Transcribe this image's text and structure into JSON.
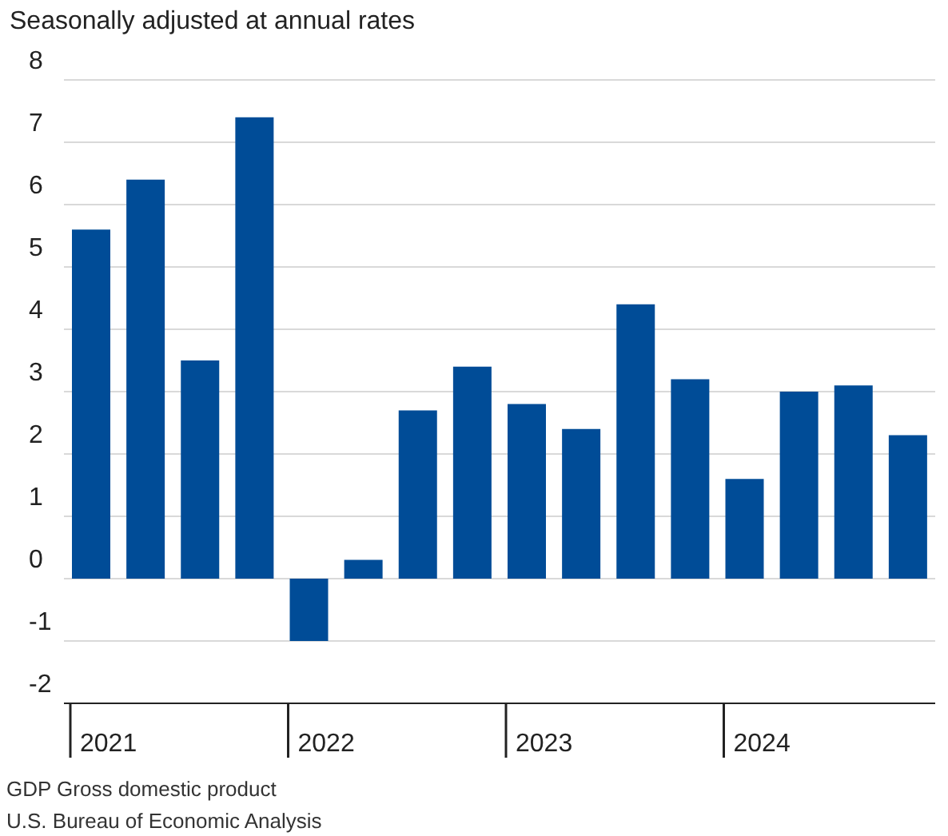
{
  "chart_data": {
    "type": "bar",
    "title": "Seasonally adjusted at annual rates",
    "categories": [
      "2021",
      null,
      null,
      null,
      "2022",
      null,
      null,
      null,
      "2023",
      null,
      null,
      null,
      "2024",
      null,
      null,
      null
    ],
    "values": [
      5.6,
      6.4,
      3.5,
      7.4,
      -1.0,
      0.3,
      2.7,
      3.4,
      2.8,
      2.4,
      4.4,
      3.2,
      1.6,
      3.0,
      3.1,
      2.3
    ],
    "color": "#004c97",
    "ylim": [
      -2,
      8
    ],
    "yticks": [
      -2,
      -1,
      0,
      1,
      2,
      3,
      4,
      5,
      6,
      7,
      8
    ],
    "grid": "y",
    "annotations": [
      "GDP Gross domestic product",
      "U.S. Bureau of Economic Analysis"
    ]
  }
}
